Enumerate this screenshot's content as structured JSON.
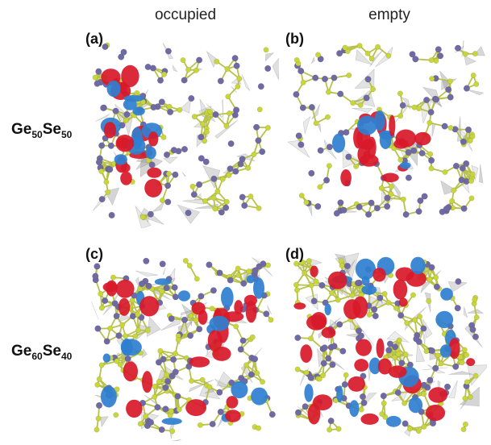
{
  "columns": {
    "left": "occupied",
    "right": "empty"
  },
  "rows": [
    {
      "element1": "Ge",
      "sub1": "50",
      "element2": "Se",
      "sub2": "50"
    },
    {
      "element1": "Ge",
      "sub1": "60",
      "element2": "Se",
      "sub2": "40"
    }
  ],
  "panels": [
    {
      "letter": "(a)",
      "seed": 11,
      "density": 1.0,
      "lobes": "left-cluster",
      "lobe_count": 26
    },
    {
      "letter": "(b)",
      "seed": 29,
      "density": 1.0,
      "lobes": "center-cluster",
      "lobe_count": 22
    },
    {
      "letter": "(c)",
      "seed": 47,
      "density": 1.25,
      "lobes": "spread",
      "lobe_count": 40
    },
    {
      "letter": "(d)",
      "seed": 83,
      "density": 1.25,
      "lobes": "spread-left",
      "lobe_count": 46
    }
  ],
  "colors": {
    "germanium": "#6f6aa3",
    "selenium": "#c9d63a",
    "bond": "#b8c24a",
    "polyhedron": "#9a9a9a",
    "orbital_positive": "#d8192a",
    "orbital_negative": "#2f7fd0"
  }
}
